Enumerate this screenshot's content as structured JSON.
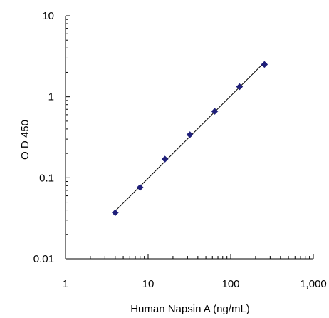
{
  "chart_data": {
    "type": "scatter",
    "title": "",
    "xlabel": "Human Napsin A (ng/mL)",
    "ylabel": "O D 450",
    "xscale": "log",
    "yscale": "log",
    "xlim": [
      1,
      1000
    ],
    "ylim": [
      0.01,
      10
    ],
    "grid": false,
    "x_ticks": [
      {
        "value": 1,
        "label": "1"
      },
      {
        "value": 10,
        "label": "10"
      },
      {
        "value": 100,
        "label": "100"
      },
      {
        "value": 1000,
        "label": "1,000"
      }
    ],
    "y_ticks": [
      {
        "value": 0.01,
        "label": "0.01"
      },
      {
        "value": 0.1,
        "label": "0.1"
      },
      {
        "value": 1,
        "label": "1"
      },
      {
        "value": 10,
        "label": "10"
      }
    ],
    "series": [
      {
        "x": [
          4,
          8,
          16,
          32,
          64,
          128,
          256
        ],
        "y": [
          0.037,
          0.076,
          0.17,
          0.34,
          0.66,
          1.33,
          2.5
        ],
        "marker": "diamond",
        "marker_color": "#1f1f7a",
        "line_color": "#000000",
        "trendline": true
      }
    ]
  }
}
